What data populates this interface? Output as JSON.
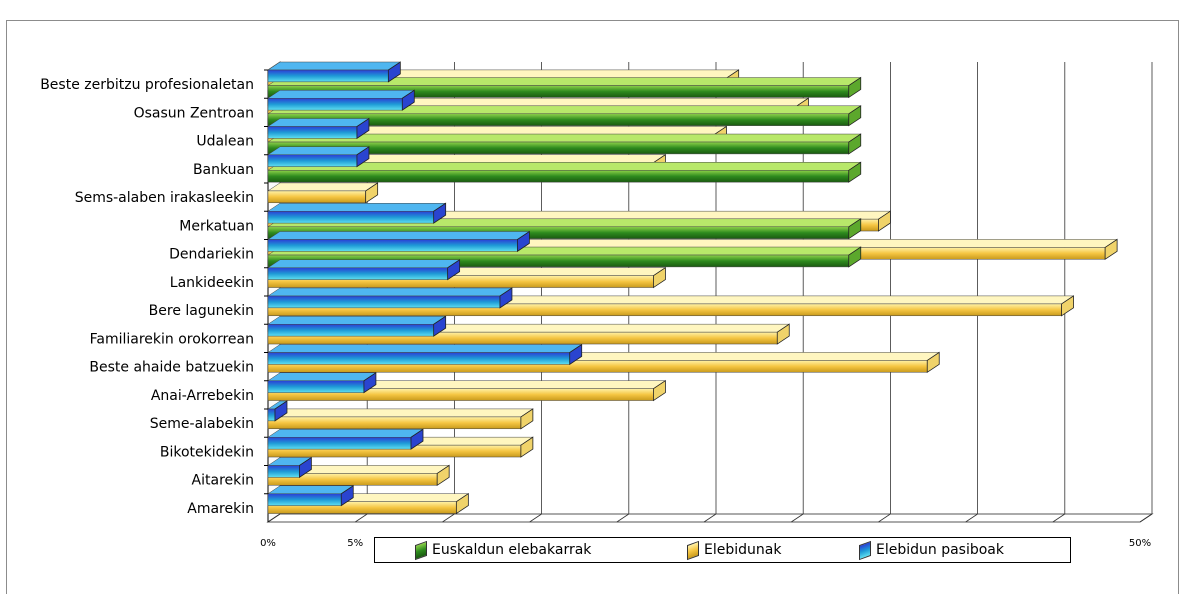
{
  "title": "",
  "chart_data": {
    "type": "bar",
    "orientation": "horizontal",
    "categories": [
      "Beste zerbitzu profesionaletan",
      "Osasun Zentroan",
      "Udalean",
      "Bankuan",
      "Sems-alaben irakasleekin",
      "Merkatuan",
      "Dendariekin",
      "Lankideekin",
      "Bere lagunekin",
      "Familiarekin orokorrean",
      "Beste ahaide batzuekin",
      "Anai-Arrebekin",
      "Seme-alabekin",
      "Bikotekidekin",
      "Aitarekin",
      "Amarekin"
    ],
    "series": [
      {
        "name": "Euskaldun elebakarrak",
        "color": "#2e8b1e",
        "values": [
          33.3,
          33.3,
          33.3,
          33.3,
          0,
          33.3,
          33.3,
          0,
          0,
          0,
          0,
          0,
          0,
          0,
          0,
          0
        ]
      },
      {
        "name": "Elebidunak",
        "color": "#f2c94c",
        "values": [
          26.3,
          30.3,
          25.6,
          22.1,
          5.6,
          35.0,
          48.0,
          22.1,
          45.5,
          29.2,
          37.8,
          22.1,
          14.5,
          14.5,
          9.7,
          10.8
        ]
      },
      {
        "name": "Elebidun pasiboak",
        "color": "#1f5fd6",
        "values": [
          6.9,
          7.7,
          5.1,
          5.1,
          0,
          9.5,
          14.3,
          10.3,
          13.3,
          9.5,
          17.3,
          5.5,
          0.4,
          8.2,
          1.8,
          4.2
        ]
      }
    ],
    "xlim": [
      0,
      50
    ],
    "x_ticks": [
      "0%",
      "5%",
      "10%",
      "15%",
      "20%",
      "25%",
      "30%",
      "35%",
      "40%",
      "45%",
      "50%"
    ],
    "xlabel": "",
    "ylabel": "",
    "grid": "vertical",
    "legend_position": "bottom"
  }
}
